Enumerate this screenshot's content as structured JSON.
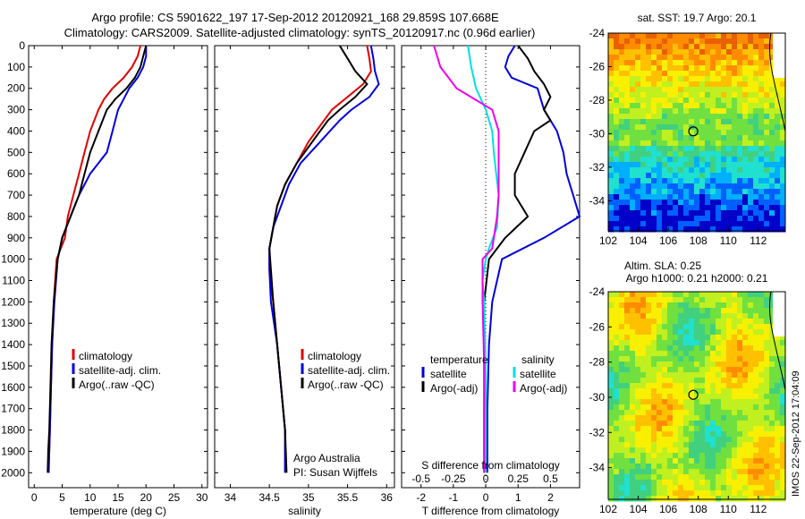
{
  "header": {
    "title_line1": "Argo profile: CS 5901622_197 17-Sep-2012 20120921_168 29.859S 107.668E",
    "title_line2": "Climatology: CARS2009. Satellite-adjusted climatology: synTS_20120917.nc (0.96d earlier)"
  },
  "side_stamp": "IMOS 22-Sep-2012 17:04:09",
  "colors": {
    "climatology": "#e00000",
    "satellite": "#0000dd",
    "argo": "#000000",
    "temp_sat_diff": "#00e0e0",
    "sal_diff": "#ee00ee"
  },
  "chart_data": [
    {
      "type": "line",
      "panel": "temperature",
      "xlabel": "temperature (deg C)",
      "xlim": [
        -1,
        31
      ],
      "ylim": [
        2070,
        0
      ],
      "y_reversed": true,
      "xticks": [
        0,
        5,
        10,
        15,
        20,
        25,
        30
      ],
      "yticks": [
        0,
        100,
        200,
        300,
        400,
        500,
        600,
        700,
        800,
        900,
        1000,
        1100,
        1200,
        1300,
        1400,
        1500,
        1600,
        1700,
        1800,
        1900,
        2000
      ],
      "legend": [
        "climatology",
        "satellite-adj. clim.",
        "Argo(..raw -QC)"
      ],
      "series": [
        {
          "name": "climatology",
          "x": [
            19,
            18.5,
            17.5,
            16,
            14,
            12.5,
            11.5,
            10,
            9,
            8,
            7,
            6,
            5.5,
            4,
            3.5,
            3.2,
            3,
            2.8,
            2.7,
            2.6,
            2.6
          ],
          "y": [
            0,
            50,
            100,
            150,
            200,
            250,
            300,
            400,
            500,
            600,
            700,
            800,
            900,
            1000,
            1200,
            1400,
            1600,
            1800,
            1900,
            1950,
            2000
          ]
        },
        {
          "name": "satellite-adj. clim.",
          "x": [
            20,
            20,
            19.5,
            18.5,
            17,
            16,
            15,
            14,
            13,
            10,
            8,
            6.5,
            5,
            4.2,
            3.6,
            3.2,
            3,
            2.8,
            2.7,
            2.6
          ],
          "y": [
            0,
            50,
            100,
            150,
            200,
            250,
            300,
            400,
            500,
            600,
            700,
            800,
            900,
            1000,
            1200,
            1400,
            1600,
            1800,
            1900,
            2000
          ]
        },
        {
          "name": "Argo(..raw -QC)",
          "x": [
            20,
            19.5,
            19,
            18,
            16.5,
            14.5,
            13,
            11.5,
            10,
            9,
            8,
            6.5,
            5,
            4.2,
            3.5,
            3.1,
            2.9,
            2.7,
            2.5,
            2.4
          ],
          "y": [
            0,
            50,
            100,
            150,
            200,
            250,
            300,
            400,
            500,
            600,
            700,
            800,
            900,
            1000,
            1200,
            1400,
            1600,
            1800,
            1900,
            2000
          ]
        }
      ]
    },
    {
      "type": "line",
      "panel": "salinity",
      "xlabel": "salinity",
      "xlim": [
        33.8,
        36.1
      ],
      "ylim": [
        2070,
        0
      ],
      "xticks": [
        34,
        34.5,
        35,
        35.5,
        36
      ],
      "legend": [
        "climatology",
        "satellite-adj. clim.",
        "Argo(..raw -QC)"
      ],
      "annotation": [
        "Argo Australia",
        "PI: Susan Wijffels"
      ],
      "series": [
        {
          "name": "climatology",
          "x": [
            35.75,
            35.78,
            35.8,
            35.7,
            35.5,
            35.3,
            35.2,
            35.0,
            34.85,
            34.7,
            34.6,
            34.55,
            34.5,
            34.5,
            34.55,
            34.6,
            34.65,
            34.7,
            34.7
          ],
          "y": [
            0,
            60,
            120,
            180,
            240,
            300,
            350,
            450,
            550,
            650,
            750,
            850,
            950,
            1050,
            1200,
            1400,
            1600,
            1800,
            2000
          ]
        },
        {
          "name": "satellite-adj. clim.",
          "x": [
            35.8,
            35.83,
            35.85,
            35.9,
            35.78,
            35.55,
            35.4,
            35.15,
            34.9,
            34.75,
            34.65,
            34.55,
            34.5,
            34.5,
            34.52,
            34.6,
            34.65,
            34.7,
            34.7
          ],
          "y": [
            0,
            60,
            120,
            180,
            240,
            300,
            350,
            450,
            550,
            650,
            750,
            850,
            950,
            1050,
            1200,
            1400,
            1600,
            1800,
            2000
          ]
        },
        {
          "name": "Argo(..raw -QC)",
          "x": [
            35.4,
            35.5,
            35.6,
            35.75,
            35.6,
            35.4,
            35.25,
            35.05,
            34.85,
            34.7,
            34.6,
            34.55,
            34.5,
            34.52,
            34.55,
            34.6,
            34.65,
            34.7,
            34.72
          ],
          "y": [
            0,
            60,
            120,
            180,
            240,
            300,
            350,
            450,
            550,
            650,
            750,
            850,
            950,
            1050,
            1200,
            1400,
            1600,
            1800,
            2000
          ]
        }
      ]
    },
    {
      "type": "line",
      "panel": "differences",
      "xlabel": "T difference from climatology",
      "xlabel_top": "S difference from climatology",
      "xlim": [
        -2.6,
        2.9
      ],
      "ylim": [
        2070,
        0
      ],
      "xticks": [
        -2,
        -1,
        0,
        1,
        2
      ],
      "xticks_S": [
        -0.5,
        -0.25,
        0,
        0.25,
        0.5
      ],
      "legend": [
        "temperature",
        "satellite",
        "Argo(-adj)",
        "salinity",
        "satellite",
        "Argo(-adj)"
      ],
      "series": [
        {
          "name": "satellite",
          "group": "temperature",
          "x": [
            0.9,
            0.7,
            0.6,
            0.8,
            1.6,
            1.7,
            1.8,
            2.2,
            2.4,
            2.5,
            2.7,
            2.9,
            1.8,
            0.5,
            0.2,
            0.1,
            0.05,
            0.05
          ],
          "y": [
            0,
            50,
            100,
            150,
            200,
            250,
            300,
            400,
            500,
            600,
            700,
            800,
            900,
            1000,
            1200,
            1400,
            1700,
            2000
          ]
        },
        {
          "name": "Argo(-adj)",
          "group": "temperature",
          "x": [
            1.0,
            1.3,
            1.5,
            1.8,
            2.0,
            1.8,
            2.0,
            1.5,
            1.2,
            0.9,
            0.9,
            1.3,
            0.6,
            0.1,
            -0.05,
            -0.05,
            -0.05,
            -0.05
          ],
          "y": [
            0,
            60,
            120,
            180,
            240,
            300,
            350,
            400,
            500,
            600,
            700,
            800,
            900,
            1000,
            1200,
            1400,
            1700,
            2000
          ]
        },
        {
          "name": "satellite",
          "group": "salinity",
          "x": [
            -0.55,
            -0.45,
            -0.3,
            0.0,
            0.2,
            0.25,
            0.4,
            0.35,
            0.1,
            0.0,
            -0.1,
            -0.05,
            0.0,
            0.0
          ],
          "y": [
            0,
            100,
            200,
            300,
            400,
            500,
            700,
            850,
            950,
            1000,
            1100,
            1200,
            1500,
            2000
          ]
        },
        {
          "name": "Argo(-adj)",
          "group": "salinity",
          "x": [
            -1.6,
            -1.4,
            -0.9,
            0.2,
            0.4,
            0.4,
            0.4,
            0.35,
            0.2,
            -0.1,
            -0.1,
            -0.05,
            -0.05
          ],
          "y": [
            0,
            100,
            200,
            300,
            400,
            500,
            700,
            800,
            950,
            1000,
            1200,
            1500,
            2000
          ]
        }
      ]
    },
    {
      "type": "heatmap",
      "panel": "SST map",
      "title": "sat. SST: 19.7 Argo: 20.1",
      "xlim": [
        102,
        113.8
      ],
      "ylim": [
        -35.8,
        -24
      ],
      "xticks": [
        102,
        104,
        106,
        108,
        110,
        112
      ],
      "yticks": [
        -24,
        -26,
        -28,
        -30,
        -32,
        -34
      ],
      "marker": {
        "lon": 107.668,
        "lat": -29.859
      }
    },
    {
      "type": "heatmap",
      "panel": "SLA map",
      "title": "Altim. SLA: 0.25",
      "subtitle": "Argo h1000: 0.21 h2000: 0.21",
      "xlim": [
        102,
        113.8
      ],
      "ylim": [
        -35.8,
        -24
      ],
      "xticks": [
        102,
        104,
        106,
        108,
        110,
        112
      ],
      "yticks": [
        -24,
        -26,
        -28,
        -30,
        -32,
        -34
      ],
      "marker": {
        "lon": 107.668,
        "lat": -29.859
      }
    }
  ]
}
